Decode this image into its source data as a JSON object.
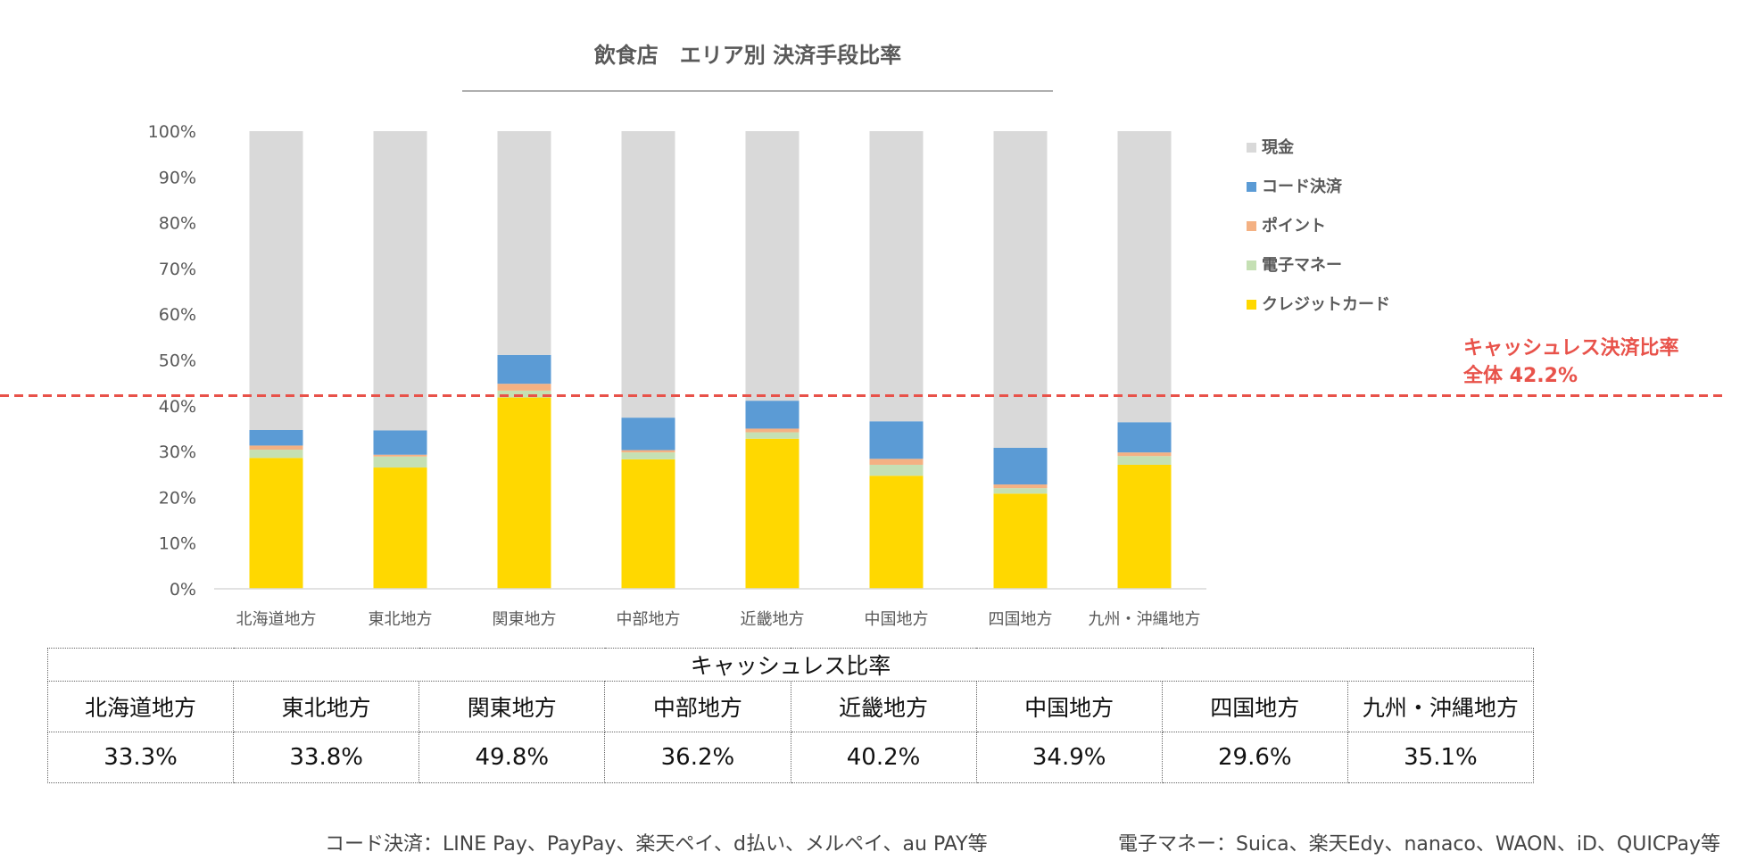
{
  "chart_data": {
    "type": "bar",
    "stacked": true,
    "normalized": true,
    "title": "飲食店　エリア別 決済手段比率",
    "categories": [
      "北海道地方",
      "東北地方",
      "関東地方",
      "中部地方",
      "近畿地方",
      "中国地方",
      "四国地方",
      "九州・沖縄地方"
    ],
    "y_ticks": [
      "0%",
      "10%",
      "20%",
      "30%",
      "40%",
      "50%",
      "60%",
      "70%",
      "80%",
      "90%",
      "100%"
    ],
    "ylim": [
      0,
      100
    ],
    "grid": false,
    "legend_position": "right",
    "series": [
      {
        "name": "クレジットカード",
        "color": "#FFD800",
        "values": [
          28.6,
          26.5,
          41.8,
          28.3,
          32.8,
          24.7,
          20.8,
          27.1
        ]
      },
      {
        "name": "電子マネー",
        "color": "#C5E0B4",
        "values": [
          1.8,
          2.4,
          1.5,
          1.5,
          1.4,
          2.4,
          1.2,
          1.9
        ]
      },
      {
        "name": "ポイント",
        "color": "#F4B183",
        "values": [
          0.9,
          0.4,
          1.5,
          0.5,
          0.8,
          1.3,
          0.8,
          0.8
        ]
      },
      {
        "name": "コード決済",
        "color": "#5B9BD5",
        "values": [
          3.4,
          5.3,
          6.3,
          7.1,
          6.1,
          8.2,
          8.0,
          6.6
        ]
      },
      {
        "name": "現金",
        "color": "#D9D9D9",
        "values": [
          65.3,
          65.4,
          48.9,
          62.6,
          58.9,
          63.4,
          69.2,
          63.6
        ]
      }
    ],
    "legend_order": [
      "現金",
      "コード決済",
      "ポイント",
      "電子マネー",
      "クレジットカード"
    ],
    "reference_line": {
      "value": 42.2,
      "color": "#E8524A",
      "label_line1": "キャッシュレス決済比率",
      "label_line2": "全体 42.2%"
    }
  },
  "table": {
    "title": "キャッシュレス比率",
    "regions": [
      "北海道地方",
      "東北地方",
      "関東地方",
      "中部地方",
      "近畿地方",
      "中国地方",
      "四国地方",
      "九州・沖縄地方"
    ],
    "values": [
      "33.3%",
      "33.8%",
      "49.8%",
      "36.2%",
      "40.2%",
      "34.9%",
      "29.6%",
      "35.1%"
    ]
  },
  "footnotes": {
    "code": "コード決済：LINE Pay、PayPay、楽天ペイ、d払い、メルペイ、au PAY等",
    "emoney": "電子マネー：Suica、楽天Edy、nanaco、WAON、iD、QUICPay等"
  }
}
